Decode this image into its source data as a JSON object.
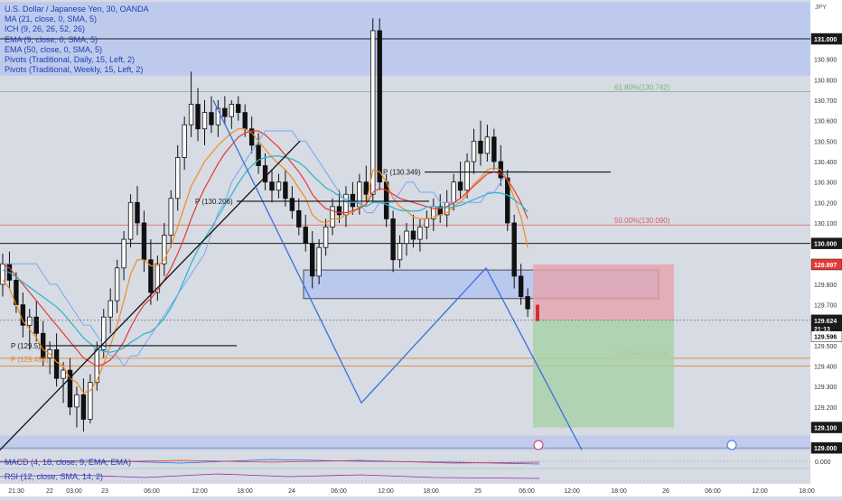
{
  "chart_data": {
    "type": "candlestick",
    "symbol_title": "U.S. Dollar / Japanese Yen, 30, OANDA",
    "currency": "JPY",
    "indicators": [
      "MA (21, close, 0, SMA, 5)",
      "ICH (9, 26, 26, 52, 26)",
      "EMA (9, close, 0, SMA, 5)",
      "EMA (50, close, 0, SMA, 5)",
      "Pivots (Traditional, Daily, 15, Left, 2)",
      "Pivots (Traditional, Weekly, 15, Left, 2)"
    ],
    "sub_indicators": [
      "MACD (4, 18, close, 9, EMA, EMA)",
      "RSI (12, close, SMA, 14, 2)"
    ],
    "y_ticks": [
      "130.900",
      "130.800",
      "130.700",
      "130.600",
      "130.500",
      "130.400",
      "130.300",
      "130.200",
      "130.100",
      "129.800",
      "129.700",
      "129.500",
      "129.400",
      "129.300",
      "129.200"
    ],
    "y_range": [
      128.97,
      131.19
    ],
    "x_labels": [
      "21:30",
      "22",
      "03:00",
      "23",
      "06:00",
      "12:00",
      "18:00",
      "24",
      "06:00",
      "12:00",
      "18:00",
      "25",
      "06:00",
      "12:00",
      "18:00",
      "26",
      "06:00",
      "12:00",
      "18:00"
    ],
    "price_badges": [
      {
        "label": "131.000",
        "value": 131.0,
        "style": "dark"
      },
      {
        "label": "130.000",
        "value": 130.0,
        "style": "dark"
      },
      {
        "label": "129.897",
        "value": 129.897,
        "style": "red"
      },
      {
        "label": "129.624",
        "value": 129.624,
        "style": "dark"
      },
      {
        "label": "21:13",
        "value": 129.583,
        "style": "dark"
      },
      {
        "label": "129.596",
        "value": 129.545,
        "style": "white"
      },
      {
        "label": "129.100",
        "value": 129.1,
        "style": "green"
      },
      {
        "label": "129.000",
        "value": 129.0,
        "style": "dark"
      }
    ],
    "fib_levels": [
      {
        "label": "61.80%(130.742)",
        "value": 130.742,
        "color": "#7ab37a"
      },
      {
        "label": "50.00%(130.090)",
        "value": 130.09,
        "color": "#e05a5a"
      },
      {
        "label": "38.20%(129.438)",
        "value": 129.438,
        "color": "#e08a2c"
      }
    ],
    "pivot_labels": [
      {
        "label": "P (130.206)",
        "value": 130.206,
        "color": "#1a1a1a"
      },
      {
        "label": "P (130.349)",
        "value": 130.349,
        "color": "#1a1a1a"
      },
      {
        "label": "P (129.5)",
        "value": 129.5,
        "color": "#1a1a1a"
      },
      {
        "label": "P (129.456)",
        "value": 129.456,
        "color": "#e08a2c"
      }
    ],
    "macd_zero_label": "0.000",
    "position": {
      "entry": 129.624,
      "stop": 129.897,
      "target": 129.1
    },
    "candles": [
      [
        129.8,
        129.95,
        129.74,
        129.9
      ],
      [
        129.9,
        129.96,
        129.78,
        129.82
      ],
      [
        129.82,
        129.86,
        129.66,
        129.7
      ],
      [
        129.7,
        129.76,
        129.54,
        129.6
      ],
      [
        129.6,
        129.68,
        129.48,
        129.64
      ],
      [
        129.64,
        129.72,
        129.52,
        129.56
      ],
      [
        129.56,
        129.62,
        129.4,
        129.44
      ],
      [
        129.44,
        129.52,
        129.36,
        129.48
      ],
      [
        129.48,
        129.56,
        129.3,
        129.34
      ],
      [
        129.34,
        129.42,
        129.22,
        129.38
      ],
      [
        129.38,
        129.44,
        129.16,
        129.2
      ],
      [
        129.2,
        129.3,
        129.1,
        129.26
      ],
      [
        129.26,
        129.34,
        129.08,
        129.14
      ],
      [
        129.14,
        129.36,
        129.12,
        129.32
      ],
      [
        129.32,
        129.52,
        129.28,
        129.48
      ],
      [
        129.48,
        129.68,
        129.44,
        129.64
      ],
      [
        129.64,
        129.78,
        129.56,
        129.72
      ],
      [
        129.72,
        129.92,
        129.66,
        129.88
      ],
      [
        129.88,
        130.06,
        129.82,
        130.02
      ],
      [
        130.02,
        130.24,
        129.98,
        130.2
      ],
      [
        130.2,
        130.28,
        130.04,
        130.1
      ],
      [
        130.1,
        130.16,
        129.86,
        129.92
      ],
      [
        129.92,
        130.02,
        129.7,
        129.76
      ],
      [
        129.76,
        129.94,
        129.72,
        129.9
      ],
      [
        129.9,
        130.1,
        129.84,
        130.04
      ],
      [
        130.04,
        130.26,
        129.98,
        130.22
      ],
      [
        130.22,
        130.48,
        130.16,
        130.42
      ],
      [
        130.42,
        130.62,
        130.36,
        130.58
      ],
      [
        130.58,
        130.84,
        130.52,
        130.68
      ],
      [
        130.68,
        130.76,
        130.5,
        130.56
      ],
      [
        130.56,
        130.7,
        130.48,
        130.64
      ],
      [
        130.64,
        130.72,
        130.54,
        130.58
      ],
      [
        130.58,
        130.7,
        130.52,
        130.66
      ],
      [
        130.66,
        130.72,
        130.58,
        130.62
      ],
      [
        130.62,
        130.7,
        130.56,
        130.68
      ],
      [
        130.68,
        130.72,
        130.6,
        130.64
      ],
      [
        130.64,
        130.68,
        130.52,
        130.56
      ],
      [
        130.56,
        130.62,
        130.44,
        130.48
      ],
      [
        130.48,
        130.54,
        130.34,
        130.38
      ],
      [
        130.38,
        130.44,
        130.26,
        130.3
      ],
      [
        130.3,
        130.36,
        130.2,
        130.26
      ],
      [
        130.26,
        130.34,
        130.22,
        130.3
      ],
      [
        130.3,
        130.36,
        130.18,
        130.22
      ],
      [
        130.22,
        130.28,
        130.12,
        130.16
      ],
      [
        130.16,
        130.22,
        130.04,
        130.08
      ],
      [
        130.08,
        130.14,
        129.96,
        130.0
      ],
      [
        130.0,
        130.06,
        129.78,
        129.84
      ],
      [
        129.84,
        130.02,
        129.8,
        129.98
      ],
      [
        129.98,
        130.12,
        129.94,
        130.08
      ],
      [
        130.08,
        130.22,
        130.04,
        130.18
      ],
      [
        130.18,
        130.26,
        130.1,
        130.14
      ],
      [
        130.14,
        130.28,
        130.08,
        130.24
      ],
      [
        130.24,
        130.3,
        130.14,
        130.18
      ],
      [
        130.18,
        130.34,
        130.14,
        130.3
      ],
      [
        130.3,
        130.38,
        130.2,
        130.24
      ],
      [
        130.24,
        131.1,
        130.2,
        131.04
      ],
      [
        131.04,
        131.1,
        130.26,
        130.3
      ],
      [
        130.3,
        130.34,
        130.08,
        130.12
      ],
      [
        130.12,
        130.16,
        129.86,
        129.92
      ],
      [
        129.92,
        130.04,
        129.88,
        130.0
      ],
      [
        130.0,
        130.1,
        129.94,
        130.06
      ],
      [
        130.06,
        130.14,
        129.98,
        130.02
      ],
      [
        130.02,
        130.12,
        129.96,
        130.08
      ],
      [
        130.08,
        130.16,
        130.02,
        130.12
      ],
      [
        130.12,
        130.22,
        130.06,
        130.18
      ],
      [
        130.18,
        130.24,
        130.1,
        130.14
      ],
      [
        130.14,
        130.26,
        130.08,
        130.2
      ],
      [
        130.2,
        130.34,
        130.16,
        130.3
      ],
      [
        130.3,
        130.4,
        130.22,
        130.26
      ],
      [
        130.26,
        130.44,
        130.22,
        130.4
      ],
      [
        130.4,
        130.56,
        130.34,
        130.5
      ],
      [
        130.5,
        130.6,
        130.38,
        130.44
      ],
      [
        130.44,
        130.58,
        130.4,
        130.52
      ],
      [
        130.52,
        130.56,
        130.36,
        130.4
      ],
      [
        130.4,
        130.48,
        130.28,
        130.32
      ],
      [
        130.32,
        130.36,
        130.06,
        130.1
      ],
      [
        130.1,
        130.14,
        129.78,
        129.84
      ],
      [
        129.84,
        129.9,
        129.7,
        129.74
      ],
      [
        129.74,
        129.78,
        129.64,
        129.68
      ]
    ],
    "ema9": [
      129.82,
      129.78,
      129.7,
      129.62,
      129.58,
      129.54,
      129.48,
      129.46,
      129.42,
      129.4,
      129.34,
      129.32,
      129.27,
      129.28,
      129.33,
      129.41,
      129.5,
      129.6,
      129.72,
      129.85,
      129.92,
      129.92,
      129.89,
      129.89,
      129.92,
      129.99,
      130.08,
      130.18,
      130.28,
      130.34,
      130.4,
      130.44,
      130.48,
      130.51,
      130.54,
      130.56,
      130.56,
      130.54,
      130.5,
      130.46,
      130.42,
      130.39,
      130.36,
      130.32,
      130.27,
      130.22,
      130.14,
      130.11,
      130.1,
      130.12,
      130.12,
      130.14,
      130.15,
      130.18,
      130.19,
      130.36,
      130.35,
      130.3,
      130.22,
      130.18,
      130.16,
      130.13,
      130.12,
      130.12,
      130.13,
      130.14,
      130.15,
      130.18,
      130.2,
      130.24,
      130.29,
      130.32,
      130.36,
      130.37,
      130.36,
      130.31,
      130.22,
      130.13,
      129.98
    ],
    "ma21": [
      129.9,
      129.88,
      129.84,
      129.8,
      129.76,
      129.72,
      129.68,
      129.64,
      129.6,
      129.56,
      129.52,
      129.48,
      129.44,
      129.42,
      129.4,
      129.41,
      129.43,
      129.47,
      129.52,
      129.59,
      129.65,
      129.7,
      129.73,
      129.77,
      129.82,
      129.88,
      129.95,
      130.03,
      130.12,
      130.2,
      130.27,
      130.33,
      130.39,
      130.44,
      130.48,
      130.52,
      130.54,
      130.55,
      130.55,
      130.53,
      130.5,
      130.47,
      130.43,
      130.39,
      130.35,
      130.3,
      130.24,
      130.2,
      130.17,
      130.16,
      130.15,
      130.15,
      130.16,
      130.17,
      130.19,
      130.25,
      130.27,
      130.26,
      130.24,
      130.22,
      130.21,
      130.2,
      130.19,
      130.18,
      130.17,
      130.17,
      130.18,
      130.2,
      130.22,
      130.25,
      130.28,
      130.31,
      130.34,
      130.35,
      130.34,
      130.31,
      130.26,
      130.2,
      130.12
    ]
  }
}
